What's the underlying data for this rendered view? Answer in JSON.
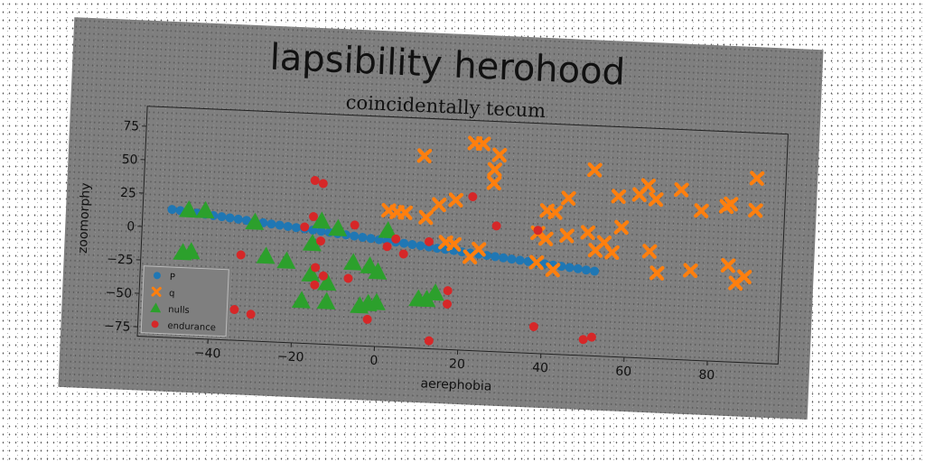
{
  "chart_data": {
    "type": "scatter",
    "title": "lapsibility herohood",
    "subtitle": "coincidentally tecum",
    "xlabel": "aerephobia",
    "ylabel": "zoomorphy",
    "xlim": [
      -57,
      97
    ],
    "ylim": [
      -82,
      90
    ],
    "x_ticks": [
      -40,
      -20,
      0,
      20,
      40,
      60,
      80
    ],
    "y_ticks": [
      -75,
      -50,
      -25,
      0,
      25,
      50,
      75
    ],
    "grid": false,
    "legend_position": "lower left",
    "series": [
      {
        "name": "P",
        "marker": "circle",
        "color": "#1f77b4",
        "points": [
          [
            -50,
            13.7
          ],
          [
            -48,
            13.1
          ],
          [
            -46,
            12.4
          ],
          [
            -44,
            11.8
          ],
          [
            -42,
            11.2
          ],
          [
            -40,
            10.5
          ],
          [
            -38,
            9.9
          ],
          [
            -36,
            9.3
          ],
          [
            -34,
            8.6
          ],
          [
            -32,
            8.0
          ],
          [
            -30,
            7.4
          ],
          [
            -28,
            6.7
          ],
          [
            -26,
            6.1
          ],
          [
            -24,
            5.5
          ],
          [
            -22,
            4.8
          ],
          [
            -20,
            4.2
          ],
          [
            -18,
            3.6
          ],
          [
            -16,
            2.9
          ],
          [
            -14,
            2.3
          ],
          [
            -12,
            1.7
          ],
          [
            -10,
            1.0
          ],
          [
            -8,
            0.4
          ],
          [
            -6,
            -0.2
          ],
          [
            -4,
            -0.9
          ],
          [
            -2,
            -1.5
          ],
          [
            0,
            -2.1
          ],
          [
            2,
            -2.8
          ],
          [
            4,
            -3.4
          ],
          [
            6,
            -4.0
          ],
          [
            8,
            -4.7
          ],
          [
            10,
            -5.3
          ],
          [
            12,
            -5.9
          ],
          [
            14,
            -6.6
          ],
          [
            16,
            -7.2
          ],
          [
            18,
            -7.8
          ],
          [
            20,
            -8.5
          ],
          [
            22,
            -9.1
          ],
          [
            24,
            -9.7
          ],
          [
            26,
            -10.4
          ],
          [
            28,
            -11.0
          ],
          [
            30,
            -11.6
          ],
          [
            32,
            -12.3
          ],
          [
            34,
            -12.9
          ],
          [
            36,
            -13.5
          ],
          [
            38,
            -14.2
          ],
          [
            40,
            -14.8
          ],
          [
            42,
            -15.4
          ],
          [
            44,
            -16.1
          ],
          [
            46,
            -16.7
          ],
          [
            48,
            -17.3
          ],
          [
            50,
            -18.0
          ],
          [
            52,
            -18.6
          ]
        ]
      },
      {
        "name": "q",
        "marker": "x",
        "color": "#ff7f0e",
        "points": [
          [
            10,
            62
          ],
          [
            22,
            73
          ],
          [
            24,
            73
          ],
          [
            27,
            54
          ],
          [
            28,
            65
          ],
          [
            27,
            44
          ],
          [
            51,
            57
          ],
          [
            90,
            56
          ],
          [
            64,
            47
          ],
          [
            62,
            40
          ],
          [
            72,
            45
          ],
          [
            66,
            37
          ],
          [
            77,
            30
          ],
          [
            83,
            34
          ],
          [
            84,
            36
          ],
          [
            90,
            32
          ],
          [
            57,
            38
          ],
          [
            58,
            15
          ],
          [
            45,
            35
          ],
          [
            40,
            25
          ],
          [
            42,
            24
          ],
          [
            45,
            7
          ],
          [
            38,
            8
          ],
          [
            40,
            4
          ],
          [
            50,
            10
          ],
          [
            52,
            -3
          ],
          [
            54,
            3
          ],
          [
            56,
            -4
          ],
          [
            65,
            -2
          ],
          [
            67,
            -18
          ],
          [
            75,
            -15
          ],
          [
            84,
            -10
          ],
          [
            86,
            -23
          ],
          [
            88,
            -18
          ],
          [
            11,
            16
          ],
          [
            2,
            20
          ],
          [
            4,
            19
          ],
          [
            6,
            19
          ],
          [
            14,
            26
          ],
          [
            18,
            30
          ],
          [
            16,
            -2
          ],
          [
            18,
            -3
          ],
          [
            24,
            -6
          ],
          [
            22,
            -12
          ],
          [
            38,
            -14
          ],
          [
            42,
            -19
          ]
        ]
      },
      {
        "name": "nulls",
        "marker": "triangle",
        "color": "#2ca02c",
        "points": [
          [
            -46,
            14
          ],
          [
            -42,
            14
          ],
          [
            -30,
            7
          ],
          [
            -14,
            10
          ],
          [
            -10,
            5
          ],
          [
            2,
            5
          ],
          [
            -47,
            -18
          ],
          [
            -45,
            -17
          ],
          [
            -27,
            -18
          ],
          [
            -22,
            -21
          ],
          [
            -16,
            -7
          ],
          [
            -16,
            -30
          ],
          [
            -12,
            -36
          ],
          [
            -6,
            -20
          ],
          [
            -2,
            -22
          ],
          [
            0,
            -26
          ],
          [
            -18,
            -50
          ],
          [
            -12,
            -50
          ],
          [
            -4,
            -52
          ],
          [
            -2,
            -50
          ],
          [
            0,
            -49
          ],
          [
            10,
            -45
          ],
          [
            12,
            -45
          ],
          [
            14,
            -40
          ]
        ]
      },
      {
        "name": "endurance",
        "marker": "circle",
        "color": "#d62728",
        "points": [
          [
            -16,
            40
          ],
          [
            -14,
            38
          ],
          [
            -16,
            13
          ],
          [
            -18,
            5
          ],
          [
            -14,
            -5
          ],
          [
            -6,
            8
          ],
          [
            4,
            -1
          ],
          [
            2,
            -7
          ],
          [
            6,
            -12
          ],
          [
            12,
            -2
          ],
          [
            22,
            33
          ],
          [
            28,
            12
          ],
          [
            38,
            10
          ],
          [
            -33,
            -18
          ],
          [
            -15,
            -25
          ],
          [
            -13,
            -31
          ],
          [
            -15,
            -38
          ],
          [
            -7,
            -32
          ],
          [
            17,
            -38
          ],
          [
            17,
            -48
          ],
          [
            -34,
            -59
          ],
          [
            -30,
            -62
          ],
          [
            -2,
            -62
          ],
          [
            13,
            -76
          ],
          [
            38,
            -62
          ],
          [
            50,
            -70
          ],
          [
            52,
            -68
          ]
        ]
      }
    ]
  }
}
